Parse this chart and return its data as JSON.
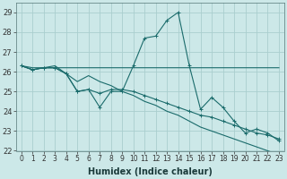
{
  "xlabel": "Humidex (Indice chaleur)",
  "ylabel": "",
  "xlim": [
    -0.5,
    23.5
  ],
  "ylim": [
    22,
    29.5
  ],
  "yticks": [
    22,
    23,
    24,
    25,
    26,
    27,
    28,
    29
  ],
  "xticks": [
    0,
    1,
    2,
    3,
    4,
    5,
    6,
    7,
    8,
    9,
    10,
    11,
    12,
    13,
    14,
    15,
    16,
    17,
    18,
    19,
    20,
    21,
    22,
    23
  ],
  "background_color": "#cce8e8",
  "grid_color": "#aacece",
  "line_color": "#1a6b6b",
  "line1": [
    26.3,
    26.1,
    26.2,
    26.3,
    25.9,
    25.5,
    25.8,
    25.5,
    25.3,
    25.0,
    24.8,
    24.5,
    24.3,
    24.0,
    23.8,
    23.5,
    23.2,
    23.0,
    22.8,
    22.6,
    22.4,
    22.2,
    22.0,
    21.8
  ],
  "line2": [
    26.3,
    26.1,
    26.2,
    26.2,
    25.9,
    25.0,
    25.1,
    24.2,
    25.0,
    25.0,
    26.3,
    27.7,
    27.8,
    28.6,
    29.0,
    26.3,
    24.1,
    24.7,
    24.2,
    23.5,
    22.9,
    23.1,
    22.9,
    22.5
  ],
  "line3": [
    26.3,
    26.1,
    26.2,
    26.2,
    25.9,
    25.0,
    25.1,
    24.9,
    25.1,
    25.1,
    25.0,
    24.8,
    24.6,
    24.4,
    24.2,
    24.0,
    23.8,
    23.7,
    23.5,
    23.3,
    23.1,
    22.9,
    22.8,
    22.6
  ],
  "line4_flat": [
    26.3,
    26.2,
    26.2,
    26.2,
    26.2,
    26.2,
    26.2,
    26.2,
    26.2,
    26.2,
    26.2,
    26.2,
    26.2,
    26.2,
    26.2,
    26.2,
    26.2,
    26.2,
    26.2,
    26.2,
    26.2,
    26.2,
    26.2,
    26.2
  ],
  "figsize": [
    3.2,
    2.0
  ],
  "dpi": 100,
  "tick_fontsize": 6,
  "xlabel_fontsize": 7
}
